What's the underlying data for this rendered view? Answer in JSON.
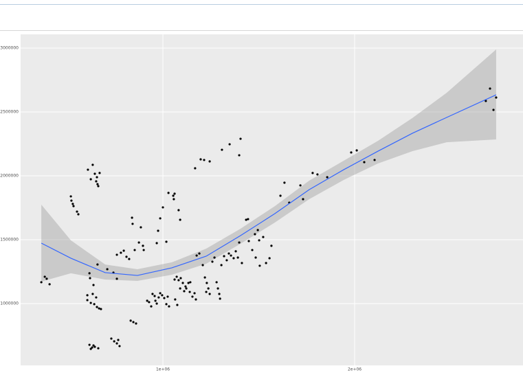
{
  "chart_data": {
    "type": "scatter",
    "xlim": [
      258000,
      2878000
    ],
    "ylim": [
      516000,
      3107500
    ],
    "xticks": [
      {
        "value": 1000000,
        "label": "1e+06"
      },
      {
        "value": 2000000,
        "label": "2e+06"
      }
    ],
    "yticks": [
      1000000,
      1500000,
      2000000,
      2500000,
      3000000
    ],
    "grid": true,
    "series": [
      {
        "color": "#000000",
        "x": [
          366000,
          384000,
          394000,
          409000,
          520000,
          523000,
          530000,
          534000,
          552000,
          559000,
          609000,
          624000,
          634000,
          645000,
          652000,
          659000,
          670000,
          656000,
          663000,
          617000,
          620000,
          606000,
          606000,
          624000,
          634000,
          642000,
          652000,
          656000,
          667000,
          677000,
          638000,
          659000,
          617000,
          631000,
          638000,
          645000,
          624000,
          663000,
          710000,
          742000,
          760000,
          731000,
          746000,
          760000,
          767000,
          774000,
          760000,
          781000,
          796000,
          810000,
          824000,
          832000,
          846000,
          860000,
          839000,
          842000,
          853000,
          875000,
          885000,
          896000,
          900000,
          918000,
          928000,
          939000,
          946000,
          957000,
          961000,
          968000,
          978000,
          986000,
          996000,
          1007000,
          1018000,
          1025000,
          1032000,
          968000,
          975000,
          986000,
          1000000,
          1018000,
          1029000,
          1054000,
          1061000,
          1057000,
          1082000,
          1090000,
          1061000,
          1072000,
          1082000,
          1093000,
          1064000,
          1075000,
          1090000,
          1104000,
          1118000,
          1111000,
          1122000,
          1133000,
          1143000,
          1154000,
          1165000,
          1172000,
          1140000,
          1176000,
          1190000,
          1168000,
          1197000,
          1215000,
          1244000,
          1208000,
          1219000,
          1229000,
          1237000,
          1244000,
          1226000,
          1258000,
          1269000,
          1280000,
          1287000,
          1294000,
          1298000,
          1305000,
          1319000,
          1333000,
          1344000,
          1355000,
          1369000,
          1380000,
          1391000,
          1398000,
          1412000,
          1308000,
          1348000,
          1398000,
          1405000,
          1434000,
          1444000,
          1448000,
          1466000,
          1480000,
          1495000,
          1502000,
          1484000,
          1505000,
          1523000,
          1538000,
          1556000,
          1566000,
          1613000,
          1634000,
          1659000,
          1717000,
          1731000,
          1781000,
          1806000,
          1857000,
          1982000,
          2011000,
          2050000,
          2104000,
          2684000,
          2706000,
          2724000,
          2738000
        ],
        "values": [
          1167000,
          1210000,
          1194000,
          1151000,
          1839000,
          1806000,
          1780000,
          1763000,
          1720000,
          1699000,
          2048000,
          1973000,
          2086000,
          2016000,
          1957000,
          1935000,
          2022000,
          1989000,
          1919000,
          1237000,
          1199000,
          1065000,
          1027000,
          1005000,
          1075000,
          995000,
          1048000,
          973000,
          962000,
          957000,
          1145000,
          1306000,
          677000,
          656000,
          672000,
          661000,
          645000,
          650000,
          1269000,
          1242000,
          1194000,
          726000,
          704000,
          688000,
          715000,
          667000,
          1382000,
          1398000,
          1414000,
          1366000,
          1349000,
          866000,
          855000,
          844000,
          1672000,
          1624000,
          1419000,
          1478000,
          1597000,
          1452000,
          1419000,
          1022000,
          1011000,
          978000,
          1075000,
          1059000,
          1022000,
          1000000,
          1048000,
          1081000,
          1065000,
          1043000,
          995000,
          1054000,
          978000,
          1473000,
          1570000,
          1667000,
          1753000,
          1484000,
          1866000,
          1844000,
          1860000,
          1817000,
          1731000,
          1656000,
          1188000,
          1210000,
          1183000,
          1199000,
          1032000,
          989000,
          1118000,
          1161000,
          1134000,
          1097000,
          1118000,
          1161000,
          1167000,
          1054000,
          1081000,
          1032000,
          1091000,
          1376000,
          1392000,
          2059000,
          2129000,
          2124000,
          2113000,
          1301000,
          1204000,
          1161000,
          1118000,
          1075000,
          1091000,
          1328000,
          1360000,
          1167000,
          1118000,
          1075000,
          1038000,
          1301000,
          1371000,
          1339000,
          1392000,
          1376000,
          1355000,
          1409000,
          1360000,
          1478000,
          1317000,
          2204000,
          2247000,
          2161000,
          2290000,
          1656000,
          1661000,
          1489000,
          1419000,
          1543000,
          1575000,
          1495000,
          1360000,
          1296000,
          1521000,
          1317000,
          1355000,
          1452000,
          1844000,
          1946000,
          1790000,
          1925000,
          1817000,
          2022000,
          2011000,
          1989000,
          2183000,
          2199000,
          2107000,
          2124000,
          2586000,
          2683000,
          2516000,
          2613000
        ]
      }
    ],
    "smooth": {
      "color": "#3366ff",
      "band_color": "#999999",
      "x": [
        366000,
        520000,
        699000,
        867000,
        1047000,
        1226000,
        1405000,
        1584000,
        1763000,
        1943000,
        2122000,
        2301000,
        2480000,
        2738000
      ],
      "values": [
        1473000,
        1355000,
        1242000,
        1220000,
        1280000,
        1371000,
        1532000,
        1704000,
        1892000,
        2048000,
        2193000,
        2333000,
        2457000,
        2634000
      ],
      "upper": [
        1774000,
        1495000,
        1306000,
        1269000,
        1323000,
        1430000,
        1586000,
        1763000,
        1962000,
        2118000,
        2274000,
        2452000,
        2650000,
        2989000
      ],
      "lower": [
        1172000,
        1237000,
        1188000,
        1177000,
        1226000,
        1312000,
        1468000,
        1634000,
        1817000,
        1968000,
        2097000,
        2193000,
        2263000,
        2285000
      ]
    }
  }
}
